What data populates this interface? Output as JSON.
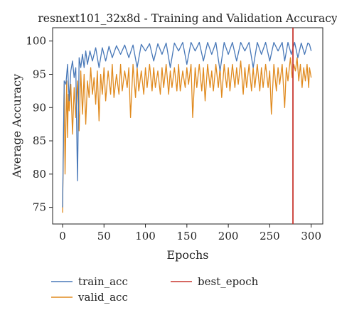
{
  "chart_data": {
    "type": "line",
    "title": "resnext101_32x8d - Training and Validation Accuracy",
    "xlabel": "Epochs",
    "ylabel": "Average Accuracy",
    "xlim": [
      -12,
      314
    ],
    "ylim": [
      72.5,
      102
    ],
    "xticks": [
      0,
      50,
      100,
      150,
      200,
      250,
      300
    ],
    "yticks": [
      75,
      80,
      85,
      90,
      95,
      100
    ],
    "grid": false,
    "legend_position": "below",
    "series": [
      {
        "name": "train_acc",
        "color": "#4878b8",
        "points": [
          [
            0,
            75.0
          ],
          [
            2,
            94.0
          ],
          [
            4,
            93.5
          ],
          [
            6,
            96.5
          ],
          [
            8,
            91.0
          ],
          [
            10,
            95.5
          ],
          [
            12,
            97.0
          ],
          [
            14,
            94.5
          ],
          [
            16,
            96.0
          ],
          [
            18,
            79.0
          ],
          [
            20,
            97.5
          ],
          [
            22,
            96.0
          ],
          [
            24,
            98.0
          ],
          [
            26,
            96.0
          ],
          [
            28,
            98.5
          ],
          [
            30,
            96.5
          ],
          [
            33,
            98.5
          ],
          [
            36,
            97.0
          ],
          [
            40,
            99.0
          ],
          [
            44,
            96.0
          ],
          [
            48,
            99.0
          ],
          [
            52,
            97.0
          ],
          [
            56,
            99.2
          ],
          [
            60,
            97.5
          ],
          [
            65,
            99.3
          ],
          [
            70,
            98.0
          ],
          [
            75,
            99.4
          ],
          [
            80,
            97.5
          ],
          [
            85,
            99.4
          ],
          [
            90,
            96.0
          ],
          [
            95,
            99.5
          ],
          [
            100,
            98.5
          ],
          [
            105,
            99.6
          ],
          [
            110,
            97.0
          ],
          [
            115,
            99.6
          ],
          [
            120,
            98.0
          ],
          [
            125,
            99.7
          ],
          [
            130,
            96.0
          ],
          [
            135,
            99.7
          ],
          [
            140,
            98.5
          ],
          [
            145,
            99.8
          ],
          [
            150,
            96.5
          ],
          [
            155,
            99.8
          ],
          [
            160,
            98.5
          ],
          [
            165,
            99.8
          ],
          [
            170,
            97.0
          ],
          [
            175,
            99.8
          ],
          [
            180,
            98.0
          ],
          [
            185,
            99.8
          ],
          [
            190,
            95.5
          ],
          [
            195,
            99.8
          ],
          [
            200,
            98.0
          ],
          [
            205,
            99.8
          ],
          [
            210,
            97.0
          ],
          [
            215,
            99.8
          ],
          [
            220,
            98.5
          ],
          [
            225,
            99.8
          ],
          [
            230,
            96.0
          ],
          [
            235,
            99.8
          ],
          [
            240,
            98.0
          ],
          [
            245,
            99.8
          ],
          [
            250,
            97.0
          ],
          [
            255,
            99.8
          ],
          [
            260,
            98.5
          ],
          [
            265,
            99.8
          ],
          [
            268,
            97.0
          ],
          [
            272,
            99.8
          ],
          [
            276,
            98.0
          ],
          [
            280,
            99.8
          ],
          [
            284,
            97.5
          ],
          [
            288,
            99.7
          ],
          [
            292,
            98.0
          ],
          [
            296,
            99.7
          ],
          [
            298,
            99.5
          ],
          [
            300,
            98.5
          ]
        ]
      },
      {
        "name": "valid_acc",
        "color": "#e08a1e",
        "points": [
          [
            0,
            74.2
          ],
          [
            2,
            93.5
          ],
          [
            3,
            80.0
          ],
          [
            5,
            94.0
          ],
          [
            6,
            85.5
          ],
          [
            7,
            92.0
          ],
          [
            8,
            89.5
          ],
          [
            10,
            93.5
          ],
          [
            12,
            86.0
          ],
          [
            14,
            93.0
          ],
          [
            16,
            88.5
          ],
          [
            18,
            94.0
          ],
          [
            20,
            86.5
          ],
          [
            22,
            95.5
          ],
          [
            24,
            89.0
          ],
          [
            26,
            95.0
          ],
          [
            28,
            87.5
          ],
          [
            30,
            94.0
          ],
          [
            32,
            91.5
          ],
          [
            34,
            96.0
          ],
          [
            36,
            92.0
          ],
          [
            38,
            94.5
          ],
          [
            40,
            90.5
          ],
          [
            42,
            95.5
          ],
          [
            44,
            88.0
          ],
          [
            46,
            95.0
          ],
          [
            48,
            92.0
          ],
          [
            50,
            96.0
          ],
          [
            52,
            91.0
          ],
          [
            55,
            95.5
          ],
          [
            58,
            92.0
          ],
          [
            60,
            96.5
          ],
          [
            62,
            91.5
          ],
          [
            65,
            95.0
          ],
          [
            68,
            92.0
          ],
          [
            70,
            96.5
          ],
          [
            72,
            92.5
          ],
          [
            75,
            95.5
          ],
          [
            78,
            93.0
          ],
          [
            80,
            96.0
          ],
          [
            82,
            88.5
          ],
          [
            85,
            96.5
          ],
          [
            88,
            91.5
          ],
          [
            90,
            96.0
          ],
          [
            92,
            92.5
          ],
          [
            95,
            95.5
          ],
          [
            98,
            92.0
          ],
          [
            100,
            96.0
          ],
          [
            102,
            93.0
          ],
          [
            105,
            96.5
          ],
          [
            108,
            92.5
          ],
          [
            110,
            96.0
          ],
          [
            112,
            93.0
          ],
          [
            115,
            95.5
          ],
          [
            118,
            92.0
          ],
          [
            120,
            96.0
          ],
          [
            122,
            93.0
          ],
          [
            125,
            96.5
          ],
          [
            128,
            92.0
          ],
          [
            130,
            95.5
          ],
          [
            132,
            93.0
          ],
          [
            135,
            96.0
          ],
          [
            138,
            92.5
          ],
          [
            140,
            96.5
          ],
          [
            142,
            92.5
          ],
          [
            145,
            95.5
          ],
          [
            148,
            93.0
          ],
          [
            150,
            96.0
          ],
          [
            152,
            93.5
          ],
          [
            155,
            96.5
          ],
          [
            157,
            88.5
          ],
          [
            160,
            96.0
          ],
          [
            162,
            93.0
          ],
          [
            165,
            96.5
          ],
          [
            168,
            92.5
          ],
          [
            170,
            96.0
          ],
          [
            172,
            91.0
          ],
          [
            175,
            96.5
          ],
          [
            178,
            93.0
          ],
          [
            180,
            95.5
          ],
          [
            182,
            92.5
          ],
          [
            185,
            96.5
          ],
          [
            188,
            93.0
          ],
          [
            190,
            96.0
          ],
          [
            192,
            91.5
          ],
          [
            195,
            96.5
          ],
          [
            198,
            93.0
          ],
          [
            200,
            96.0
          ],
          [
            202,
            92.5
          ],
          [
            205,
            96.5
          ],
          [
            208,
            93.0
          ],
          [
            210,
            96.0
          ],
          [
            212,
            93.5
          ],
          [
            215,
            97.0
          ],
          [
            218,
            92.0
          ],
          [
            220,
            96.0
          ],
          [
            222,
            93.0
          ],
          [
            225,
            96.5
          ],
          [
            228,
            92.5
          ],
          [
            230,
            96.0
          ],
          [
            232,
            93.0
          ],
          [
            235,
            96.5
          ],
          [
            238,
            92.5
          ],
          [
            240,
            96.0
          ],
          [
            242,
            93.0
          ],
          [
            245,
            96.5
          ],
          [
            248,
            93.0
          ],
          [
            250,
            95.5
          ],
          [
            252,
            89.0
          ],
          [
            255,
            96.5
          ],
          [
            258,
            92.5
          ],
          [
            260,
            96.0
          ],
          [
            262,
            93.5
          ],
          [
            265,
            96.5
          ],
          [
            268,
            90.0
          ],
          [
            270,
            96.0
          ],
          [
            272,
            94.0
          ],
          [
            275,
            97.5
          ],
          [
            277,
            94.5
          ],
          [
            279,
            96.5
          ],
          [
            281,
            95.5
          ],
          [
            283,
            97.5
          ],
          [
            285,
            94.0
          ],
          [
            287,
            96.5
          ],
          [
            289,
            93.0
          ],
          [
            291,
            96.0
          ],
          [
            293,
            94.0
          ],
          [
            295,
            96.5
          ],
          [
            297,
            93.0
          ],
          [
            298,
            96.0
          ],
          [
            300,
            94.5
          ]
        ]
      }
    ],
    "vlines": [
      {
        "name": "best_epoch",
        "x": 278,
        "color": "#c8362f"
      }
    ],
    "legend": [
      {
        "label": "train_acc",
        "color": "#4878b8"
      },
      {
        "label": "best_epoch",
        "color": "#c8362f"
      },
      {
        "label": "valid_acc",
        "color": "#e08a1e"
      }
    ]
  }
}
